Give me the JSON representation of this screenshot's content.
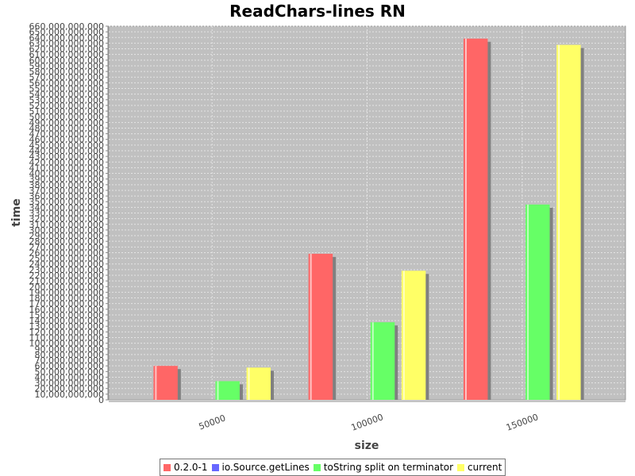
{
  "chart_data": {
    "type": "bar",
    "title": "ReadChars-lines RN",
    "xlabel": "size",
    "ylabel": "time",
    "categories": [
      "50000",
      "100000",
      "150000"
    ],
    "series": [
      {
        "name": "0.2.0-1",
        "color": "#ff6666",
        "values": [
          60000000000,
          258000000000,
          638000000000
        ]
      },
      {
        "name": "io.Source.getLines",
        "color": "#6666ff",
        "values": [
          0,
          0,
          0
        ]
      },
      {
        "name": "toString split on terminator",
        "color": "#66ff66",
        "values": [
          33000000000,
          137000000000,
          345000000000
        ]
      },
      {
        "name": "current",
        "color": "#ffff66",
        "values": [
          57000000000,
          228000000000,
          627000000000
        ]
      }
    ],
    "ylim": [
      0,
      660000000000
    ],
    "ytick_step": 10000000000,
    "grid": true,
    "legend_position": "bottom"
  }
}
